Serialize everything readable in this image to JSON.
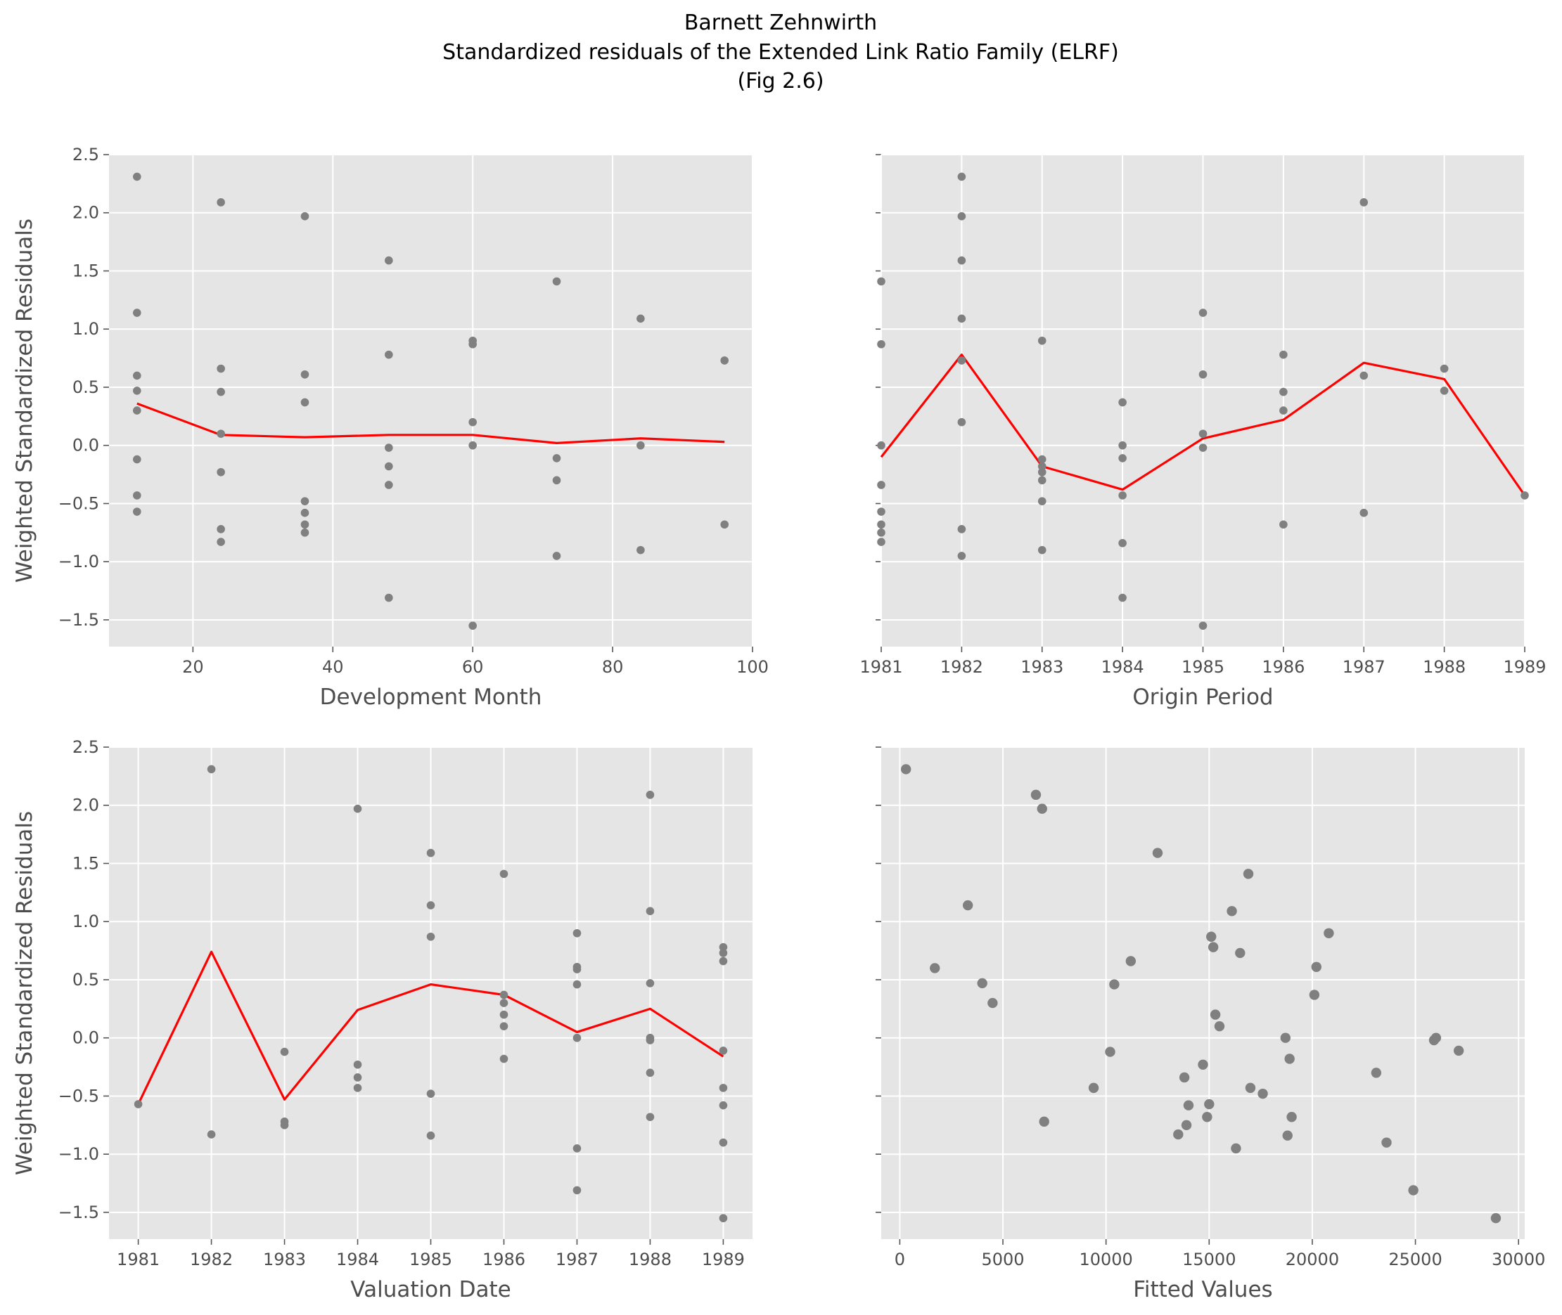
{
  "figure": {
    "title_lines": [
      "Barnett Zehnwirth",
      "Standardized residuals of the Extended Link Ratio Family (ELRF)",
      "(Fig 2.6)"
    ]
  },
  "chart_data": [
    {
      "type": "scatter",
      "xlabel": "Development Month",
      "ylabel": "Weighted Standardized Residuals",
      "xlim": [
        8,
        100
      ],
      "ylim": [
        -1.73,
        2.5
      ],
      "xticks": [
        20,
        40,
        60,
        80,
        100
      ],
      "xtick_labels": [
        "20",
        "40",
        "60",
        "80",
        "100"
      ],
      "yticks": [
        -1.5,
        -1.0,
        -0.5,
        0.0,
        0.5,
        1.0,
        1.5,
        2.0,
        2.5
      ],
      "ytick_labels": [
        "−1.5",
        "−1.0",
        "−0.5",
        "0.0",
        "0.5",
        "1.0",
        "1.5",
        "2.0",
        "2.5"
      ],
      "show_ytick_labels": true,
      "grid": true,
      "points": [
        [
          12,
          2.31
        ],
        [
          12,
          1.14
        ],
        [
          12,
          0.6
        ],
        [
          12,
          0.47
        ],
        [
          12,
          0.3
        ],
        [
          12,
          -0.12
        ],
        [
          12,
          -0.43
        ],
        [
          12,
          -0.57
        ],
        [
          24,
          2.09
        ],
        [
          24,
          0.66
        ],
        [
          24,
          0.46
        ],
        [
          24,
          0.1
        ],
        [
          24,
          -0.23
        ],
        [
          24,
          -0.72
        ],
        [
          24,
          -0.83
        ],
        [
          36,
          1.97
        ],
        [
          36,
          0.61
        ],
        [
          36,
          0.37
        ],
        [
          36,
          -0.48
        ],
        [
          36,
          -0.58
        ],
        [
          36,
          -0.68
        ],
        [
          36,
          -0.75
        ],
        [
          48,
          1.59
        ],
        [
          48,
          0.78
        ],
        [
          48,
          -0.02
        ],
        [
          48,
          -0.18
        ],
        [
          48,
          -0.34
        ],
        [
          48,
          -1.31
        ],
        [
          60,
          0.9
        ],
        [
          60,
          0.87
        ],
        [
          60,
          0.2
        ],
        [
          60,
          0.0
        ],
        [
          60,
          -1.55
        ],
        [
          72,
          1.41
        ],
        [
          72,
          -0.11
        ],
        [
          72,
          -0.3
        ],
        [
          72,
          -0.95
        ],
        [
          84,
          1.09
        ],
        [
          84,
          0.0
        ],
        [
          84,
          -0.9
        ],
        [
          96,
          0.73
        ],
        [
          96,
          -0.68
        ]
      ],
      "trend": [
        [
          12,
          0.36
        ],
        [
          24,
          0.09
        ],
        [
          36,
          0.07
        ],
        [
          48,
          0.09
        ],
        [
          60,
          0.09
        ],
        [
          72,
          0.02
        ],
        [
          84,
          0.06
        ],
        [
          96,
          0.03
        ]
      ]
    },
    {
      "type": "scatter",
      "xlabel": "Origin Period",
      "ylabel": "",
      "xlim": [
        1981,
        1989
      ],
      "ylim": [
        -1.73,
        2.5
      ],
      "xticks": [
        1981,
        1982,
        1983,
        1984,
        1985,
        1986,
        1987,
        1988,
        1989
      ],
      "xtick_labels": [
        "1981",
        "1982",
        "1983",
        "1984",
        "1985",
        "1986",
        "1987",
        "1988",
        "1989"
      ],
      "yticks": [
        -1.5,
        -1.0,
        -0.5,
        0.0,
        0.5,
        1.0,
        1.5,
        2.0,
        2.5
      ],
      "show_ytick_labels": false,
      "grid": true,
      "points": [
        [
          1981,
          1.41
        ],
        [
          1981,
          0.87
        ],
        [
          1981,
          0.0
        ],
        [
          1981,
          -0.34
        ],
        [
          1981,
          -0.57
        ],
        [
          1981,
          -0.68
        ],
        [
          1981,
          -0.75
        ],
        [
          1981,
          -0.83
        ],
        [
          1982,
          2.31
        ],
        [
          1982,
          1.97
        ],
        [
          1982,
          1.59
        ],
        [
          1982,
          1.09
        ],
        [
          1982,
          0.73
        ],
        [
          1982,
          0.2
        ],
        [
          1982,
          -0.72
        ],
        [
          1982,
          -0.95
        ],
        [
          1983,
          0.9
        ],
        [
          1983,
          -0.12
        ],
        [
          1983,
          -0.18
        ],
        [
          1983,
          -0.23
        ],
        [
          1983,
          -0.3
        ],
        [
          1983,
          -0.48
        ],
        [
          1983,
          -0.9
        ],
        [
          1984,
          0.37
        ],
        [
          1984,
          0.0
        ],
        [
          1984,
          -0.11
        ],
        [
          1984,
          -0.43
        ],
        [
          1984,
          -0.84
        ],
        [
          1984,
          -1.31
        ],
        [
          1985,
          1.14
        ],
        [
          1985,
          0.61
        ],
        [
          1985,
          0.1
        ],
        [
          1985,
          -0.02
        ],
        [
          1985,
          -1.55
        ],
        [
          1986,
          0.78
        ],
        [
          1986,
          0.46
        ],
        [
          1986,
          0.3
        ],
        [
          1986,
          -0.68
        ],
        [
          1987,
          2.09
        ],
        [
          1987,
          0.6
        ],
        [
          1987,
          -0.58
        ],
        [
          1988,
          0.66
        ],
        [
          1988,
          0.47
        ],
        [
          1989,
          -0.43
        ]
      ],
      "trend": [
        [
          1981,
          -0.1
        ],
        [
          1982,
          0.78
        ],
        [
          1983,
          -0.18
        ],
        [
          1984,
          -0.38
        ],
        [
          1985,
          0.06
        ],
        [
          1986,
          0.22
        ],
        [
          1987,
          0.71
        ],
        [
          1988,
          0.57
        ],
        [
          1989,
          -0.43
        ]
      ]
    },
    {
      "type": "scatter",
      "xlabel": "Valuation Date",
      "ylabel": "Weighted Standardized Residuals",
      "xlim": [
        1980.6,
        1989.4
      ],
      "ylim": [
        -1.73,
        2.5
      ],
      "xticks": [
        1981,
        1982,
        1983,
        1984,
        1985,
        1986,
        1987,
        1988,
        1989
      ],
      "xtick_labels": [
        "1981",
        "1982",
        "1983",
        "1984",
        "1985",
        "1986",
        "1987",
        "1988",
        "1989"
      ],
      "yticks": [
        -1.5,
        -1.0,
        -0.5,
        0.0,
        0.5,
        1.0,
        1.5,
        2.0,
        2.5
      ],
      "ytick_labels": [
        "−1.5",
        "−1.0",
        "−0.5",
        "0.0",
        "0.5",
        "1.0",
        "1.5",
        "2.0",
        "2.5"
      ],
      "show_ytick_labels": true,
      "grid": true,
      "points": [
        [
          1981,
          -0.57
        ],
        [
          1982,
          2.31
        ],
        [
          1982,
          -0.83
        ],
        [
          1983,
          -0.12
        ],
        [
          1983,
          -0.72
        ],
        [
          1983,
          -0.75
        ],
        [
          1984,
          1.97
        ],
        [
          1984,
          -0.23
        ],
        [
          1984,
          -0.34
        ],
        [
          1984,
          -0.43
        ],
        [
          1985,
          1.59
        ],
        [
          1985,
          1.14
        ],
        [
          1985,
          0.87
        ],
        [
          1985,
          -0.48
        ],
        [
          1985,
          -0.84
        ],
        [
          1986,
          1.41
        ],
        [
          1986,
          0.37
        ],
        [
          1986,
          0.3
        ],
        [
          1986,
          0.2
        ],
        [
          1986,
          0.1
        ],
        [
          1986,
          -0.18
        ],
        [
          1987,
          0.9
        ],
        [
          1987,
          0.61
        ],
        [
          1987,
          0.59
        ],
        [
          1987,
          0.46
        ],
        [
          1987,
          0.0
        ],
        [
          1987,
          -0.95
        ],
        [
          1987,
          -1.31
        ],
        [
          1988,
          2.09
        ],
        [
          1988,
          1.09
        ],
        [
          1988,
          0.47
        ],
        [
          1988,
          0.0
        ],
        [
          1988,
          -0.02
        ],
        [
          1988,
          -0.3
        ],
        [
          1988,
          -0.68
        ],
        [
          1989,
          0.78
        ],
        [
          1989,
          0.73
        ],
        [
          1989,
          0.66
        ],
        [
          1989,
          -0.11
        ],
        [
          1989,
          -0.43
        ],
        [
          1989,
          -0.58
        ],
        [
          1989,
          -0.9
        ],
        [
          1989,
          -1.55
        ]
      ],
      "trend": [
        [
          1981,
          -0.57
        ],
        [
          1982,
          0.74
        ],
        [
          1983,
          -0.53
        ],
        [
          1984,
          0.24
        ],
        [
          1985,
          0.46
        ],
        [
          1986,
          0.37
        ],
        [
          1987,
          0.05
        ],
        [
          1988,
          0.25
        ],
        [
          1989,
          -0.16
        ]
      ]
    },
    {
      "type": "scatter",
      "xlabel": "Fitted Values",
      "ylabel": "",
      "xlim": [
        -900,
        30300
      ],
      "ylim": [
        -1.73,
        2.5
      ],
      "xticks": [
        0,
        5000,
        10000,
        15000,
        20000,
        25000,
        30000
      ],
      "xtick_labels": [
        "0",
        "5000",
        "10000",
        "15000",
        "20000",
        "25000",
        "30000"
      ],
      "yticks": [
        -1.5,
        -1.0,
        -0.5,
        0.0,
        0.5,
        1.0,
        1.5,
        2.0,
        2.5
      ],
      "show_ytick_labels": false,
      "grid": true,
      "points": [
        [
          300,
          2.31
        ],
        [
          1700,
          0.6
        ],
        [
          3300,
          1.14
        ],
        [
          4000,
          0.47
        ],
        [
          4500,
          0.3
        ],
        [
          6600,
          2.09
        ],
        [
          6900,
          1.97
        ],
        [
          7000,
          -0.72
        ],
        [
          9400,
          -0.43
        ],
        [
          10200,
          -0.12
        ],
        [
          10400,
          0.46
        ],
        [
          11200,
          0.66
        ],
        [
          12500,
          1.59
        ],
        [
          13500,
          -0.83
        ],
        [
          13800,
          -0.34
        ],
        [
          13900,
          -0.75
        ],
        [
          14000,
          -0.58
        ],
        [
          14700,
          -0.23
        ],
        [
          14900,
          -0.68
        ],
        [
          15000,
          -0.57
        ],
        [
          15100,
          0.87
        ],
        [
          15200,
          0.78
        ],
        [
          15300,
          0.2
        ],
        [
          15500,
          0.1
        ],
        [
          16100,
          1.09
        ],
        [
          16300,
          -0.95
        ],
        [
          16500,
          0.73
        ],
        [
          16900,
          1.41
        ],
        [
          17000,
          -0.43
        ],
        [
          17600,
          -0.48
        ],
        [
          18700,
          0.0
        ],
        [
          18800,
          -0.84
        ],
        [
          18900,
          -0.18
        ],
        [
          19000,
          -0.68
        ],
        [
          20100,
          0.37
        ],
        [
          20200,
          0.61
        ],
        [
          20800,
          0.9
        ],
        [
          23100,
          -0.3
        ],
        [
          23600,
          -0.9
        ],
        [
          24900,
          -1.31
        ],
        [
          25900,
          -0.02
        ],
        [
          26000,
          0.0
        ],
        [
          27100,
          -0.11
        ],
        [
          28900,
          -1.55
        ]
      ],
      "trend": []
    }
  ]
}
